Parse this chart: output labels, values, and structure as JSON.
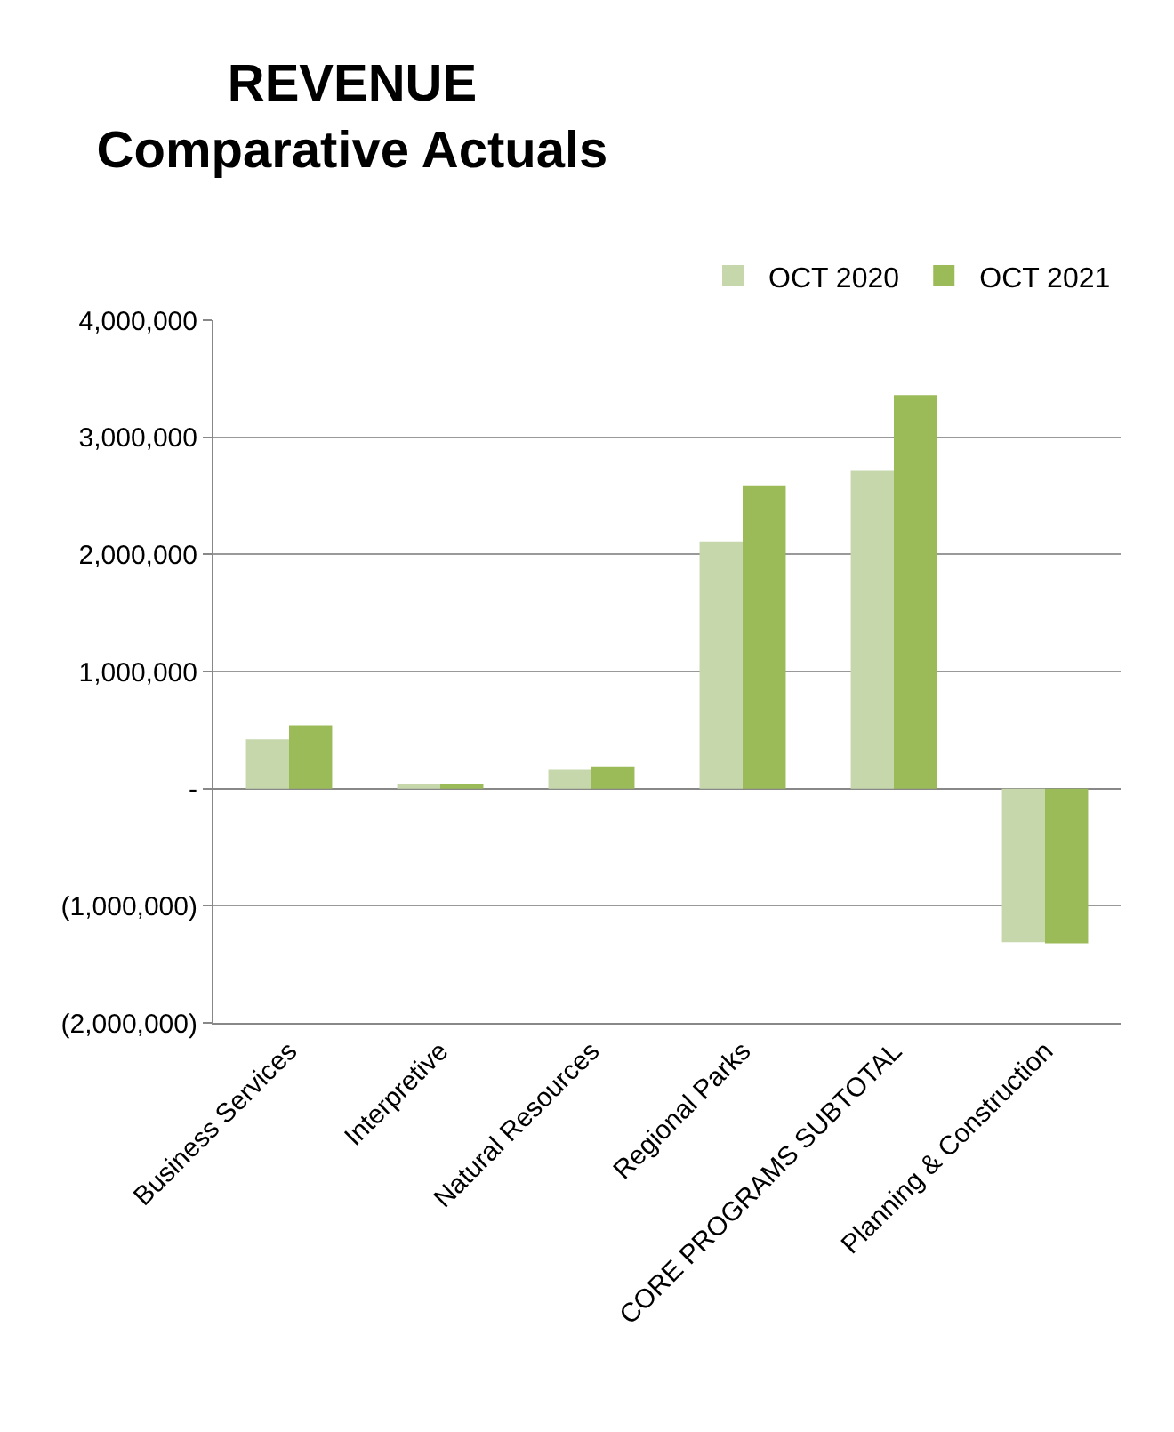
{
  "chart_data": {
    "type": "bar",
    "title": "REVENUE\nComparative Actuals",
    "categories": [
      "Business Services",
      "Interpretive",
      "Natural Resources",
      "Regional Parks",
      "CORE PROGRAMS SUBTOTAL",
      "Planning & Construction"
    ],
    "series": [
      {
        "name": "OCT 2020",
        "color": "#c6d7ab",
        "values": [
          420000,
          40000,
          160000,
          2110000,
          2720000,
          -1310000
        ]
      },
      {
        "name": "OCT 2021",
        "color": "#9bbb59",
        "values": [
          540000,
          40000,
          190000,
          2590000,
          3360000,
          -1320000
        ]
      }
    ],
    "ylim": [
      -2000000,
      4000000
    ],
    "yticks": [
      {
        "value": -2000000,
        "label": "(2,000,000)"
      },
      {
        "value": -1000000,
        "label": "(1,000,000)"
      },
      {
        "value": 0,
        "label": "-"
      },
      {
        "value": 1000000,
        "label": "1,000,000"
      },
      {
        "value": 2000000,
        "label": "2,000,000"
      },
      {
        "value": 3000000,
        "label": "3,000,000"
      },
      {
        "value": 4000000,
        "label": "4,000,000"
      }
    ],
    "grid": "y",
    "legend": "top right"
  }
}
